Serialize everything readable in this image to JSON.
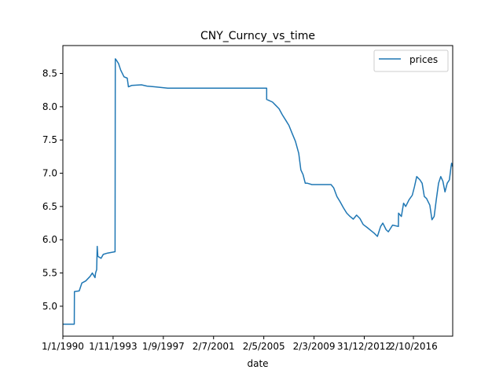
{
  "chart_data": {
    "type": "line",
    "title": "CNY_Curncy_vs_time",
    "xlabel": "date",
    "ylabel": "",
    "x_ticks": [
      "1/1/1990",
      "1/11/1993",
      "1/9/1997",
      "2/7/2001",
      "2/5/2005",
      "2/3/2009",
      "31/12/2012",
      "2/10/2016"
    ],
    "xlim": [
      "1/1/1990",
      "1/10/2019"
    ],
    "y_ticks": [
      5.0,
      5.5,
      6.0,
      6.5,
      7.0,
      7.5,
      8.0,
      8.5
    ],
    "ylim": [
      4.55,
      8.92
    ],
    "legend": {
      "position": "top-right",
      "entries": [
        "prices"
      ]
    },
    "grid": false,
    "colors": {
      "prices": "#1f77b4"
    },
    "series": [
      {
        "name": "prices",
        "points": [
          [
            "1/1/1990",
            4.73
          ],
          [
            "15/11/1990",
            4.73
          ],
          [
            "20/11/1990",
            5.22
          ],
          [
            "1/4/1991",
            5.23
          ],
          [
            "15/6/1991",
            5.35
          ],
          [
            "1/10/1991",
            5.38
          ],
          [
            "1/2/1992",
            5.45
          ],
          [
            "1/4/1992",
            5.5
          ],
          [
            "15/6/1992",
            5.43
          ],
          [
            "1/7/1992",
            5.5
          ],
          [
            "1/8/1992",
            5.55
          ],
          [
            "15/8/1992",
            5.9
          ],
          [
            "1/9/1992",
            5.75
          ],
          [
            "1/12/1992",
            5.72
          ],
          [
            "1/2/1993",
            5.78
          ],
          [
            "1/6/1993",
            5.8
          ],
          [
            "25/12/1993",
            5.82
          ],
          [
            "1/1/1994",
            8.72
          ],
          [
            "1/2/1994",
            8.7
          ],
          [
            "1/4/1994",
            8.65
          ],
          [
            "1/6/1994",
            8.55
          ],
          [
            "1/9/1994",
            8.45
          ],
          [
            "1/12/1994",
            8.43
          ],
          [
            "1/1/1995",
            8.3
          ],
          [
            "1/4/1995",
            8.32
          ],
          [
            "1/1/1996",
            8.33
          ],
          [
            "1/6/1996",
            8.31
          ],
          [
            "1/1/1997",
            8.3
          ],
          [
            "1/1/1998",
            8.28
          ],
          [
            "1/1/2000",
            8.28
          ],
          [
            "1/1/2003",
            8.28
          ],
          [
            "20/7/2005",
            8.28
          ],
          [
            "22/7/2005",
            8.11
          ],
          [
            "1/1/2006",
            8.07
          ],
          [
            "1/4/2006",
            8.02
          ],
          [
            "1/7/2006",
            7.97
          ],
          [
            "1/10/2006",
            7.88
          ],
          [
            "1/1/2007",
            7.8
          ],
          [
            "1/4/2007",
            7.72
          ],
          [
            "1/7/2007",
            7.6
          ],
          [
            "1/10/2007",
            7.48
          ],
          [
            "1/1/2008",
            7.3
          ],
          [
            "1/3/2008",
            7.05
          ],
          [
            "1/5/2008",
            6.98
          ],
          [
            "1/7/2008",
            6.85
          ],
          [
            "1/9/2008",
            6.85
          ],
          [
            "1/1/2009",
            6.83
          ],
          [
            "1/1/2010",
            6.83
          ],
          [
            "20/6/2010",
            6.83
          ],
          [
            "1/9/2010",
            6.78
          ],
          [
            "1/12/2010",
            6.65
          ],
          [
            "1/3/2011",
            6.57
          ],
          [
            "1/6/2011",
            6.48
          ],
          [
            "1/9/2011",
            6.4
          ],
          [
            "1/12/2011",
            6.35
          ],
          [
            "1/3/2012",
            6.31
          ],
          [
            "1/6/2012",
            6.37
          ],
          [
            "1/9/2012",
            6.32
          ],
          [
            "1/12/2012",
            6.23
          ],
          [
            "1/4/2013",
            6.18
          ],
          [
            "1/7/2013",
            6.14
          ],
          [
            "1/10/2013",
            6.1
          ],
          [
            "1/1/2014",
            6.05
          ],
          [
            "1/4/2014",
            6.2
          ],
          [
            "1/6/2014",
            6.25
          ],
          [
            "1/9/2014",
            6.15
          ],
          [
            "1/11/2014",
            6.12
          ],
          [
            "1/3/2015",
            6.22
          ],
          [
            "10/8/2015",
            6.2
          ],
          [
            "13/8/2015",
            6.4
          ],
          [
            "1/11/2015",
            6.35
          ],
          [
            "1/1/2016",
            6.55
          ],
          [
            "1/3/2016",
            6.5
          ],
          [
            "1/6/2016",
            6.6
          ],
          [
            "1/9/2016",
            6.67
          ],
          [
            "1/11/2016",
            6.8
          ],
          [
            "1/1/2017",
            6.95
          ],
          [
            "1/4/2017",
            6.9
          ],
          [
            "1/6/2017",
            6.85
          ],
          [
            "1/8/2017",
            6.65
          ],
          [
            "1/10/2017",
            6.62
          ],
          [
            "1/1/2018",
            6.52
          ],
          [
            "1/3/2018",
            6.3
          ],
          [
            "1/5/2018",
            6.35
          ],
          [
            "1/7/2018",
            6.6
          ],
          [
            "1/9/2018",
            6.85
          ],
          [
            "1/11/2018",
            6.95
          ],
          [
            "1/1/2019",
            6.88
          ],
          [
            "1/3/2019",
            6.72
          ],
          [
            "1/5/2019",
            6.85
          ],
          [
            "1/7/2019",
            6.9
          ],
          [
            "15/8/2019",
            7.1
          ],
          [
            "1/9/2019",
            7.15
          ],
          [
            "1/10/2019",
            7.1
          ]
        ]
      }
    ]
  }
}
